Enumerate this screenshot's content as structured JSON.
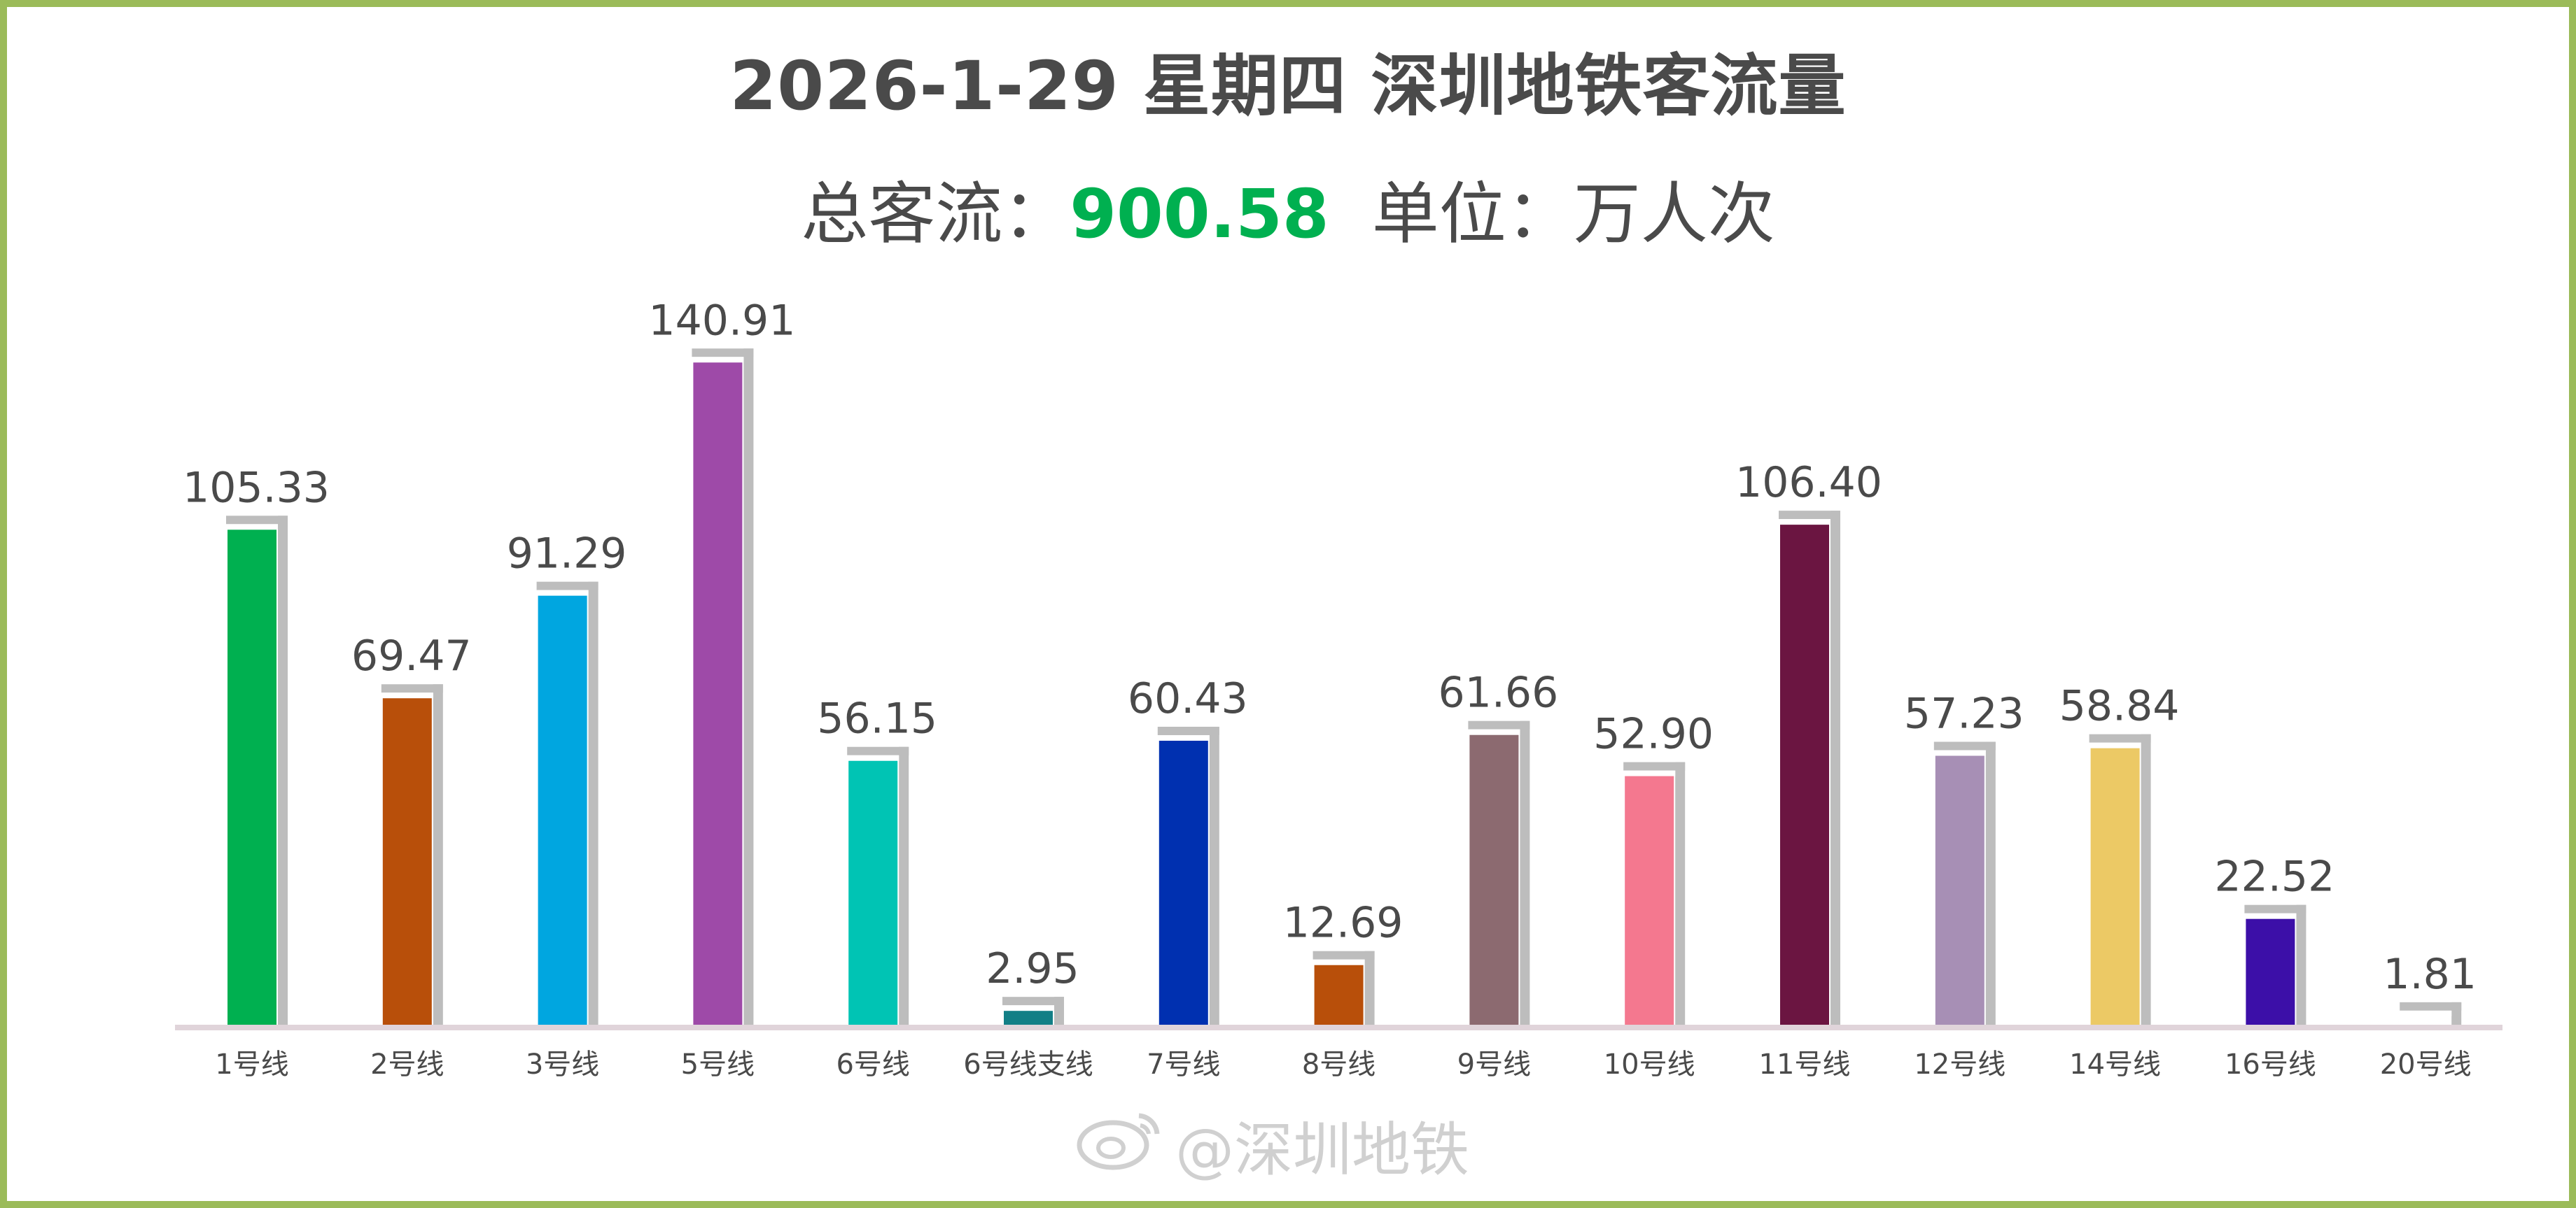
{
  "chart_data": {
    "type": "bar",
    "title": "2026-1-29 星期四  深圳地铁客流量",
    "subtitle": {
      "prefix": "总客流：",
      "total": "900.58",
      "suffix": "  单位：万人次"
    },
    "categories": [
      "1号线",
      "2号线",
      "3号线",
      "5号线",
      "6号线",
      "6号线支线",
      "7号线",
      "8号线",
      "9号线",
      "10号线",
      "11号线",
      "12号线",
      "14号线",
      "16号线",
      "20号线"
    ],
    "values": [
      105.33,
      69.47,
      91.29,
      140.91,
      56.15,
      2.95,
      60.43,
      12.69,
      61.66,
      52.9,
      106.4,
      57.23,
      58.84,
      22.52,
      1.81
    ],
    "labels": [
      "105.33",
      "69.47",
      "91.29",
      "140.91",
      "56.15",
      "2.95",
      "60.43",
      "12.69",
      "61.66",
      "52.90",
      "106.40",
      "57.23",
      "58.84",
      "22.52",
      "1.81"
    ],
    "colors": [
      "#00b050",
      "#b84f0a",
      "#00a6e0",
      "#9e4aa8",
      "#00c4b4",
      "#137f86",
      "#0030b0",
      "#b84f0a",
      "#8c6a70",
      "#f4788f",
      "#6b1541",
      "#a78fb5",
      "#ecc965",
      "#3c0fa8",
      "#ffffff"
    ],
    "shadow_color": "#bdbdbd",
    "axis_color": "#e0d4da",
    "ylim": [
      0,
      160
    ],
    "legend": "none",
    "grid": false
  },
  "watermark": {
    "icon": "weibo-icon",
    "text": "@深圳地铁"
  },
  "colors": {
    "border": "#9bbb59",
    "title_text": "#4a4a4a",
    "total_highlight": "#00b050"
  }
}
